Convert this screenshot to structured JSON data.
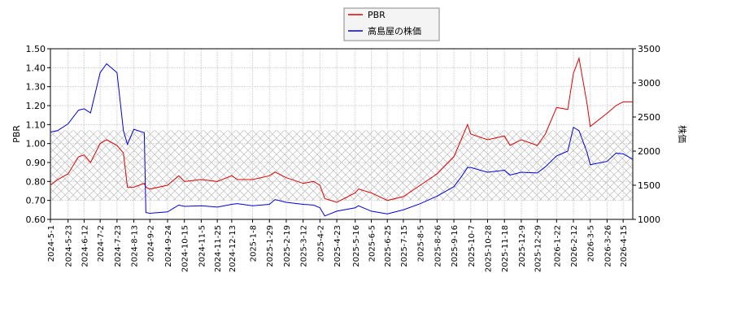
{
  "chart_data": {
    "type": "line",
    "ylabel": "PBR",
    "y2label": "株価",
    "x": [
      "2024-5-1",
      "2024-5-10",
      "2024-5-23",
      "2024-6-5",
      "2024-6-12",
      "2024-6-20",
      "2024-7-2",
      "2024-7-10",
      "2024-7-23",
      "2024-7-31",
      "2024-8-5",
      "2024-8-13",
      "2024-8-26",
      "2024-8-28",
      "2024-9-2",
      "2024-9-24",
      "2024-10-8",
      "2024-10-15",
      "2024-11-5",
      "2024-11-25",
      "2024-12-13",
      "2024-12-20",
      "2025-1-8",
      "2025-1-29",
      "2025-2-5",
      "2025-2-19",
      "2025-3-12",
      "2025-3-25",
      "2025-4-2",
      "2025-4-8",
      "2025-4-23",
      "2025-5-16",
      "2025-5-20",
      "2025-6-5",
      "2025-6-25",
      "2025-7-15",
      "2025-8-5",
      "2025-8-26",
      "2025-9-16",
      "2025-9-25",
      "2025-10-3",
      "2025-10-7",
      "2025-10-28",
      "2025-11-18",
      "2025-11-25",
      "2025-12-9",
      "2025-12-29",
      "2026-1-8",
      "2026-1-22",
      "2026-2-5",
      "2026-2-12",
      "2026-2-19",
      "2026-3-1",
      "2026-3-5",
      "2026-3-26",
      "2026-4-6",
      "2026-4-15",
      "2026-4-27"
    ],
    "series": [
      {
        "name": "PBR",
        "color": "#dd0000",
        "axis": "y",
        "values": [
          0.78,
          0.81,
          0.84,
          0.93,
          0.94,
          0.9,
          1.0,
          1.02,
          0.99,
          0.95,
          0.77,
          0.77,
          0.79,
          0.77,
          0.76,
          0.78,
          0.83,
          0.8,
          0.81,
          0.8,
          0.83,
          0.81,
          0.81,
          0.83,
          0.85,
          0.82,
          0.79,
          0.8,
          0.78,
          0.71,
          0.69,
          0.74,
          0.76,
          0.74,
          0.7,
          0.72,
          0.78,
          0.84,
          0.93,
          1.02,
          1.1,
          1.05,
          1.02,
          1.04,
          0.99,
          1.02,
          0.99,
          1.05,
          1.19,
          1.18,
          1.37,
          1.45,
          1.21,
          1.09,
          1.16,
          1.2,
          1.22,
          1.22
        ]
      },
      {
        "name": "高島屋の株価",
        "color": "#0000dd",
        "axis": "y2",
        "values": [
          2280,
          2300,
          2400,
          2600,
          2620,
          2560,
          3150,
          3280,
          3150,
          2300,
          2100,
          2320,
          2270,
          1100,
          1090,
          1110,
          1210,
          1190,
          1200,
          1180,
          1220,
          1230,
          1200,
          1220,
          1290,
          1250,
          1220,
          1210,
          1170,
          1050,
          1120,
          1170,
          1200,
          1120,
          1080,
          1140,
          1230,
          1340,
          1480,
          1620,
          1760,
          1760,
          1690,
          1720,
          1650,
          1690,
          1680,
          1770,
          1930,
          2000,
          2350,
          2300,
          1980,
          1800,
          1850,
          1970,
          1960,
          1880
        ]
      }
    ],
    "shaded_range": [
      0.7,
      1.07
    ],
    "xlim": [
      "2024-5-1",
      "2026-4-27"
    ],
    "xticks": [
      "2024-5-1",
      "2024-5-23",
      "2024-6-12",
      "2024-7-2",
      "2024-7-23",
      "2024-8-13",
      "2024-9-2",
      "2024-9-24",
      "2024-10-15",
      "2024-11-5",
      "2024-11-25",
      "2024-12-13",
      "2025-1-8",
      "2025-1-29",
      "2025-2-19",
      "2025-3-12",
      "2025-4-2",
      "2025-4-23",
      "2025-5-16",
      "2025-6-5",
      "2025-6-25",
      "2025-7-15",
      "2025-8-5",
      "2025-8-26",
      "2025-9-16",
      "2025-10-7",
      "2025-10-28",
      "2025-11-18",
      "2025-12-9",
      "2025-12-29",
      "2026-1-22",
      "2026-2-12",
      "2026-3-5",
      "2026-3-26",
      "2026-4-15"
    ],
    "ylim": [
      0.6,
      1.5
    ],
    "yticks": [
      {
        "value": 0.6,
        "label": "0.60"
      },
      {
        "value": 0.7,
        "label": "0.70"
      },
      {
        "value": 0.8,
        "label": "0.80"
      },
      {
        "value": 0.9,
        "label": "0.90"
      },
      {
        "value": 1.0,
        "label": "1.00"
      },
      {
        "value": 1.1,
        "label": "1.10"
      },
      {
        "value": 1.2,
        "label": "1.20"
      },
      {
        "value": 1.3,
        "label": "1.30"
      },
      {
        "value": 1.4,
        "label": "1.40"
      },
      {
        "value": 1.5,
        "label": "1.50"
      }
    ],
    "y2lim": [
      1000,
      3500
    ],
    "y2ticks": [
      1000,
      1500,
      2000,
      2500,
      3000,
      3500
    ],
    "grid": true,
    "legend": "top"
  }
}
